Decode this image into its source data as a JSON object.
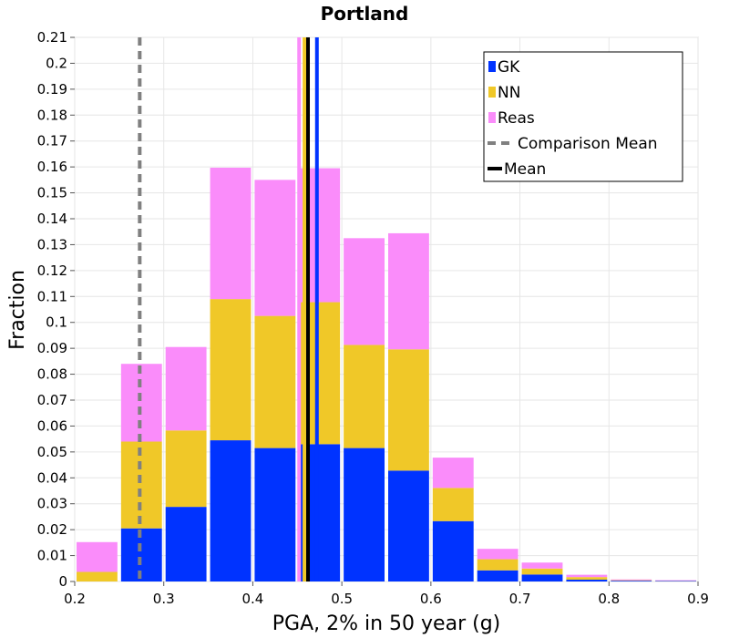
{
  "chart_data": {
    "type": "bar",
    "stacked": true,
    "title": "Portland",
    "xlabel": "PGA, 2% in 50 year (g)",
    "ylabel": "Fraction",
    "xlim": [
      0.2,
      0.9
    ],
    "ylim": [
      0,
      0.21
    ],
    "x_ticks": [
      "0.2",
      "0.3",
      "0.4",
      "0.5",
      "0.6",
      "0.7",
      "0.8",
      "0.9"
    ],
    "y_ticks": [
      "0",
      "0.01",
      "0.02",
      "0.03",
      "0.04",
      "0.05",
      "0.06",
      "0.07",
      "0.08",
      "0.09",
      "0.1",
      "0.11",
      "0.12",
      "0.13",
      "0.14",
      "0.15",
      "0.16",
      "0.17",
      "0.18",
      "0.19",
      "0.2",
      "0.21"
    ],
    "bin_width": 0.05,
    "bins": [
      0.2,
      0.25,
      0.3,
      0.35,
      0.4,
      0.45,
      0.5,
      0.55,
      0.6,
      0.65,
      0.7,
      0.75,
      0.8,
      0.85
    ],
    "series": [
      {
        "name": "GK",
        "color": "#0033ff",
        "values": [
          0.0,
          0.0205,
          0.0288,
          0.0545,
          0.0515,
          0.053,
          0.0515,
          0.0428,
          0.0233,
          0.0043,
          0.0027,
          0.0007,
          0.0003,
          0.0002
        ]
      },
      {
        "name": "NN",
        "color": "#f0c828",
        "values": [
          0.0037,
          0.0335,
          0.0295,
          0.0545,
          0.051,
          0.0548,
          0.0398,
          0.0468,
          0.0128,
          0.0043,
          0.0023,
          0.001,
          0.0002,
          0.0001
        ]
      },
      {
        "name": "Reas",
        "color": "#fa8cfa",
        "values": [
          0.0115,
          0.03,
          0.0322,
          0.0507,
          0.0525,
          0.0517,
          0.0412,
          0.0448,
          0.0117,
          0.004,
          0.0023,
          0.0009,
          0.0003,
          0.0002
        ]
      }
    ],
    "vertical_lines": [
      {
        "name": "GK mean",
        "x": 0.472,
        "color": "#0033ff",
        "style": "solid"
      },
      {
        "name": "NN mean",
        "x": 0.458,
        "color": "#f0c828",
        "style": "solid"
      },
      {
        "name": "Reas mean",
        "x": 0.452,
        "color": "#fa8cfa",
        "style": "solid"
      },
      {
        "name": "Mean",
        "x": 0.462,
        "color": "#000000",
        "style": "solid"
      },
      {
        "name": "Comparison Mean",
        "x": 0.273,
        "color": "#808080",
        "style": "dashed"
      }
    ],
    "legend": {
      "position": "top-right",
      "items": [
        {
          "label": "GK",
          "color": "#0033ff",
          "kind": "box"
        },
        {
          "label": "NN",
          "color": "#f0c828",
          "kind": "box"
        },
        {
          "label": "Reas",
          "color": "#fa8cfa",
          "kind": "box"
        },
        {
          "label": "Comparison Mean",
          "color": "#808080",
          "kind": "dashed-line"
        },
        {
          "label": "Mean",
          "color": "#000000",
          "kind": "line"
        }
      ]
    },
    "grid": true
  }
}
